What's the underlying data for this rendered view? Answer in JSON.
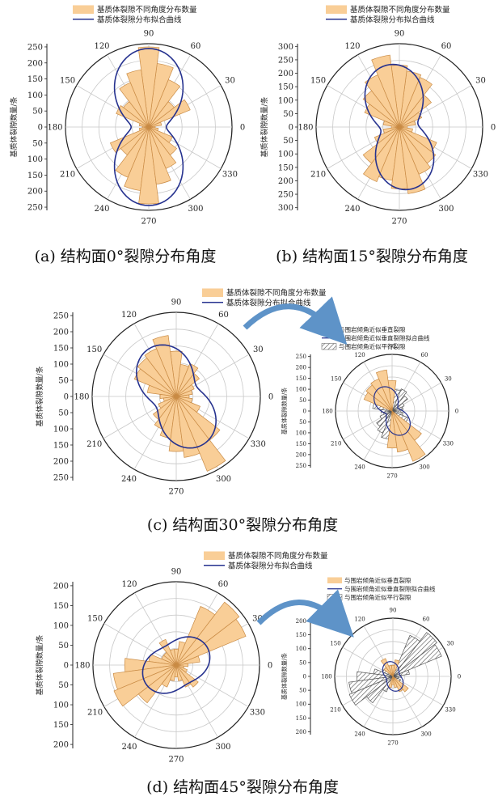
{
  "colors": {
    "bar_fill": "#F9CE97",
    "bar_stroke": "#C98B45",
    "curve": "#26328F",
    "hatch": "#555555",
    "arrow": "#5E93C8",
    "grid": "#C8C8C8",
    "axis": "#222222"
  },
  "chart_data": [
    {
      "id": "a",
      "type": "polar-bar",
      "caption": "(a) 结构面0°裂隙分布角度",
      "ylabel": "基质体裂隙数量/条",
      "legend": [
        "基质体裂隙不同角度分布数量",
        "基质体裂隙分布拟合曲线"
      ],
      "angle_ticks": [
        "0",
        "30",
        "60",
        "90",
        "120",
        "150",
        "180",
        "210",
        "240",
        "270",
        "300",
        "330"
      ],
      "radial_max": 260,
      "radial_ticks": [
        250,
        200,
        150,
        100,
        50,
        0
      ],
      "bar_width_deg": 15,
      "bars": [
        {
          "angle": 0,
          "value": 20
        },
        {
          "angle": 15,
          "value": 40
        },
        {
          "angle": 30,
          "value": 140
        },
        {
          "angle": 45,
          "value": 100
        },
        {
          "angle": 60,
          "value": 160
        },
        {
          "angle": 75,
          "value": 200
        },
        {
          "angle": 90,
          "value": 250
        },
        {
          "angle": 105,
          "value": 180
        },
        {
          "angle": 120,
          "value": 150
        },
        {
          "angle": 135,
          "value": 100
        },
        {
          "angle": 150,
          "value": 110
        },
        {
          "angle": 165,
          "value": 30
        },
        {
          "angle": 180,
          "value": 20
        },
        {
          "angle": 195,
          "value": 30
        },
        {
          "angle": 210,
          "value": 130
        },
        {
          "angle": 225,
          "value": 110
        },
        {
          "angle": 240,
          "value": 170
        },
        {
          "angle": 255,
          "value": 200
        },
        {
          "angle": 270,
          "value": 240
        },
        {
          "angle": 285,
          "value": 180
        },
        {
          "angle": 300,
          "value": 140
        },
        {
          "angle": 315,
          "value": 110
        },
        {
          "angle": 330,
          "value": 80
        },
        {
          "angle": 345,
          "value": 30
        }
      ],
      "curve": {
        "major": 245,
        "minor": 55,
        "orientation": 90
      }
    },
    {
      "id": "b",
      "type": "polar-bar",
      "caption": "(b) 结构面15°裂隙分布角度",
      "ylabel": "基质体裂隙数量/条",
      "legend": [
        "基质体裂隙不同角度分布数量",
        "基质体裂隙分布拟合曲线"
      ],
      "angle_ticks": [
        "0",
        "30",
        "60",
        "90",
        "120",
        "150",
        "180",
        "210",
        "240",
        "270",
        "300",
        "330"
      ],
      "radial_max": 310,
      "radial_ticks": [
        300,
        250,
        200,
        150,
        100,
        50,
        0
      ],
      "bar_width_deg": 15,
      "bars": [
        {
          "angle": 0,
          "value": 30
        },
        {
          "angle": 15,
          "value": 60
        },
        {
          "angle": 30,
          "value": 90
        },
        {
          "angle": 45,
          "value": 150
        },
        {
          "angle": 60,
          "value": 200
        },
        {
          "angle": 75,
          "value": 210
        },
        {
          "angle": 90,
          "value": 230
        },
        {
          "angle": 105,
          "value": 270
        },
        {
          "angle": 120,
          "value": 210
        },
        {
          "angle": 135,
          "value": 170
        },
        {
          "angle": 150,
          "value": 140
        },
        {
          "angle": 165,
          "value": 60
        },
        {
          "angle": 180,
          "value": 30
        },
        {
          "angle": 195,
          "value": 60
        },
        {
          "angle": 210,
          "value": 100
        },
        {
          "angle": 225,
          "value": 170
        },
        {
          "angle": 240,
          "value": 220
        },
        {
          "angle": 255,
          "value": 200
        },
        {
          "angle": 270,
          "value": 230
        },
        {
          "angle": 285,
          "value": 250
        },
        {
          "angle": 300,
          "value": 190
        },
        {
          "angle": 315,
          "value": 170
        },
        {
          "angle": 330,
          "value": 150
        },
        {
          "angle": 345,
          "value": 50
        }
      ],
      "curve": {
        "major": 235,
        "minor": 70,
        "orientation": 100
      }
    },
    {
      "id": "c",
      "type": "polar-bar",
      "caption": "(c) 结构面30°裂隙分布角度",
      "ylabel": "基质体裂隙数量/条",
      "legend": [
        "基质体裂隙不同角度分布数量",
        "基质体裂隙分布拟合曲线"
      ],
      "angle_ticks": [
        "0",
        "30",
        "60",
        "90",
        "120",
        "150",
        "180",
        "210",
        "240",
        "270",
        "300",
        "330"
      ],
      "radial_max": 260,
      "radial_ticks": [
        250,
        200,
        150,
        100,
        50,
        0
      ],
      "bar_width_deg": 15,
      "bars": [
        {
          "angle": 0,
          "value": 40
        },
        {
          "angle": 15,
          "value": 50
        },
        {
          "angle": 30,
          "value": 60
        },
        {
          "angle": 45,
          "value": 90
        },
        {
          "angle": 60,
          "value": 110
        },
        {
          "angle": 75,
          "value": 100
        },
        {
          "angle": 90,
          "value": 140
        },
        {
          "angle": 105,
          "value": 190
        },
        {
          "angle": 120,
          "value": 160
        },
        {
          "angle": 135,
          "value": 150
        },
        {
          "angle": 150,
          "value": 140
        },
        {
          "angle": 165,
          "value": 90
        },
        {
          "angle": 180,
          "value": 50
        },
        {
          "angle": 195,
          "value": 40
        },
        {
          "angle": 210,
          "value": 60
        },
        {
          "angle": 225,
          "value": 90
        },
        {
          "angle": 240,
          "value": 110
        },
        {
          "angle": 255,
          "value": 130
        },
        {
          "angle": 270,
          "value": 170
        },
        {
          "angle": 285,
          "value": 190
        },
        {
          "angle": 300,
          "value": 250
        },
        {
          "angle": 315,
          "value": 170
        },
        {
          "angle": 330,
          "value": 80
        },
        {
          "angle": 345,
          "value": 50
        }
      ],
      "curve": {
        "major": 170,
        "minor": 70,
        "orientation": 118
      }
    },
    {
      "id": "d",
      "type": "polar-bar",
      "caption": "(d) 结构面45°裂隙分布角度",
      "ylabel": "基质体裂隙数量/条",
      "legend": [
        "基质体裂隙不同角度分布数量",
        "基质体裂隙分布拟合曲线"
      ],
      "angle_ticks": [
        "0",
        "30",
        "60",
        "90",
        "120",
        "150",
        "180",
        "210",
        "240",
        "270",
        "300",
        "330"
      ],
      "radial_max": 210,
      "radial_ticks": [
        200,
        150,
        100,
        50,
        0,
        50,
        100,
        150,
        200
      ],
      "bar_width_deg": 15,
      "bars": [
        {
          "angle": 0,
          "value": 30
        },
        {
          "angle": 15,
          "value": 60
        },
        {
          "angle": 30,
          "value": 190
        },
        {
          "angle": 45,
          "value": 200
        },
        {
          "angle": 60,
          "value": 160
        },
        {
          "angle": 75,
          "value": 60
        },
        {
          "angle": 90,
          "value": 40
        },
        {
          "angle": 105,
          "value": 40
        },
        {
          "angle": 120,
          "value": 70
        },
        {
          "angle": 135,
          "value": 40
        },
        {
          "angle": 150,
          "value": 40
        },
        {
          "angle": 165,
          "value": 70
        },
        {
          "angle": 180,
          "value": 130
        },
        {
          "angle": 195,
          "value": 160
        },
        {
          "angle": 210,
          "value": 170
        },
        {
          "angle": 225,
          "value": 120
        },
        {
          "angle": 240,
          "value": 60
        },
        {
          "angle": 255,
          "value": 40
        },
        {
          "angle": 270,
          "value": 30
        },
        {
          "angle": 285,
          "value": 40
        },
        {
          "angle": 300,
          "value": 60
        },
        {
          "angle": 315,
          "value": 70
        },
        {
          "angle": 330,
          "value": 30
        },
        {
          "angle": 345,
          "value": 20
        }
      ],
      "curve": {
        "major": 90,
        "minor": 55,
        "orientation": 30
      }
    },
    {
      "id": "c-inset",
      "type": "polar-bar",
      "ylabel": "基质体裂隙数量/条",
      "legend": [
        "与围岩倾角近似垂直裂隙",
        "与围岩倾角近似垂直裂隙拟合曲线",
        "与围岩倾角近似平行裂隙"
      ],
      "angle_ticks": [
        "0",
        "30",
        "60",
        "90",
        "120",
        "150",
        "180",
        "210",
        "240",
        "270",
        "300",
        "330"
      ],
      "radial_max": 260,
      "radial_ticks": [
        250,
        200,
        150,
        100,
        50,
        0,
        50,
        100,
        150,
        200,
        250
      ],
      "bar_width_deg": 15,
      "bars_perpendicular": [
        {
          "angle": 90,
          "value": 140
        },
        {
          "angle": 105,
          "value": 190
        },
        {
          "angle": 120,
          "value": 160
        },
        {
          "angle": 135,
          "value": 150
        },
        {
          "angle": 150,
          "value": 140
        },
        {
          "angle": 270,
          "value": 170
        },
        {
          "angle": 285,
          "value": 190
        },
        {
          "angle": 300,
          "value": 250
        },
        {
          "angle": 315,
          "value": 170
        }
      ],
      "bars_parallel": [
        {
          "angle": 0,
          "value": 40
        },
        {
          "angle": 15,
          "value": 50
        },
        {
          "angle": 30,
          "value": 60
        },
        {
          "angle": 45,
          "value": 90
        },
        {
          "angle": 60,
          "value": 110
        },
        {
          "angle": 75,
          "value": 100
        },
        {
          "angle": 165,
          "value": 90
        },
        {
          "angle": 180,
          "value": 50
        },
        {
          "angle": 195,
          "value": 40
        },
        {
          "angle": 210,
          "value": 60
        },
        {
          "angle": 225,
          "value": 90
        },
        {
          "angle": 240,
          "value": 110
        },
        {
          "angle": 255,
          "value": 130
        },
        {
          "angle": 330,
          "value": 80
        },
        {
          "angle": 345,
          "value": 50
        }
      ],
      "curve": {
        "major": 120,
        "minor": 30,
        "orientation": 118
      }
    },
    {
      "id": "d-inset",
      "type": "polar-bar",
      "ylabel": "基质体裂隙数量/条",
      "legend": [
        "与围岩倾角近似垂直裂隙",
        "与围岩倾角近似垂直裂隙拟合曲线",
        "与围岩倾角近似平行裂隙"
      ],
      "angle_ticks": [
        "0",
        "30",
        "60",
        "90",
        "120",
        "150",
        "180",
        "210",
        "240",
        "270",
        "300",
        "330"
      ],
      "radial_max": 210,
      "radial_ticks": [
        200,
        150,
        100,
        50,
        0,
        50,
        100,
        150,
        200
      ],
      "bar_width_deg": 15,
      "bars_perpendicular": [
        {
          "angle": 75,
          "value": 60
        },
        {
          "angle": 90,
          "value": 40
        },
        {
          "angle": 105,
          "value": 40
        },
        {
          "angle": 120,
          "value": 70
        },
        {
          "angle": 135,
          "value": 40
        },
        {
          "angle": 255,
          "value": 40
        },
        {
          "angle": 270,
          "value": 30
        },
        {
          "angle": 285,
          "value": 40
        },
        {
          "angle": 300,
          "value": 60
        },
        {
          "angle": 315,
          "value": 70
        }
      ],
      "bars_parallel": [
        {
          "angle": 0,
          "value": 30
        },
        {
          "angle": 15,
          "value": 60
        },
        {
          "angle": 30,
          "value": 190
        },
        {
          "angle": 45,
          "value": 200
        },
        {
          "angle": 60,
          "value": 160
        },
        {
          "angle": 150,
          "value": 40
        },
        {
          "angle": 165,
          "value": 70
        },
        {
          "angle": 180,
          "value": 130
        },
        {
          "angle": 195,
          "value": 160
        },
        {
          "angle": 210,
          "value": 170
        },
        {
          "angle": 225,
          "value": 120
        },
        {
          "angle": 240,
          "value": 60
        },
        {
          "angle": 330,
          "value": 30
        },
        {
          "angle": 345,
          "value": 20
        }
      ],
      "curve": {
        "major": 55,
        "minor": 25,
        "orientation": 110
      }
    }
  ]
}
